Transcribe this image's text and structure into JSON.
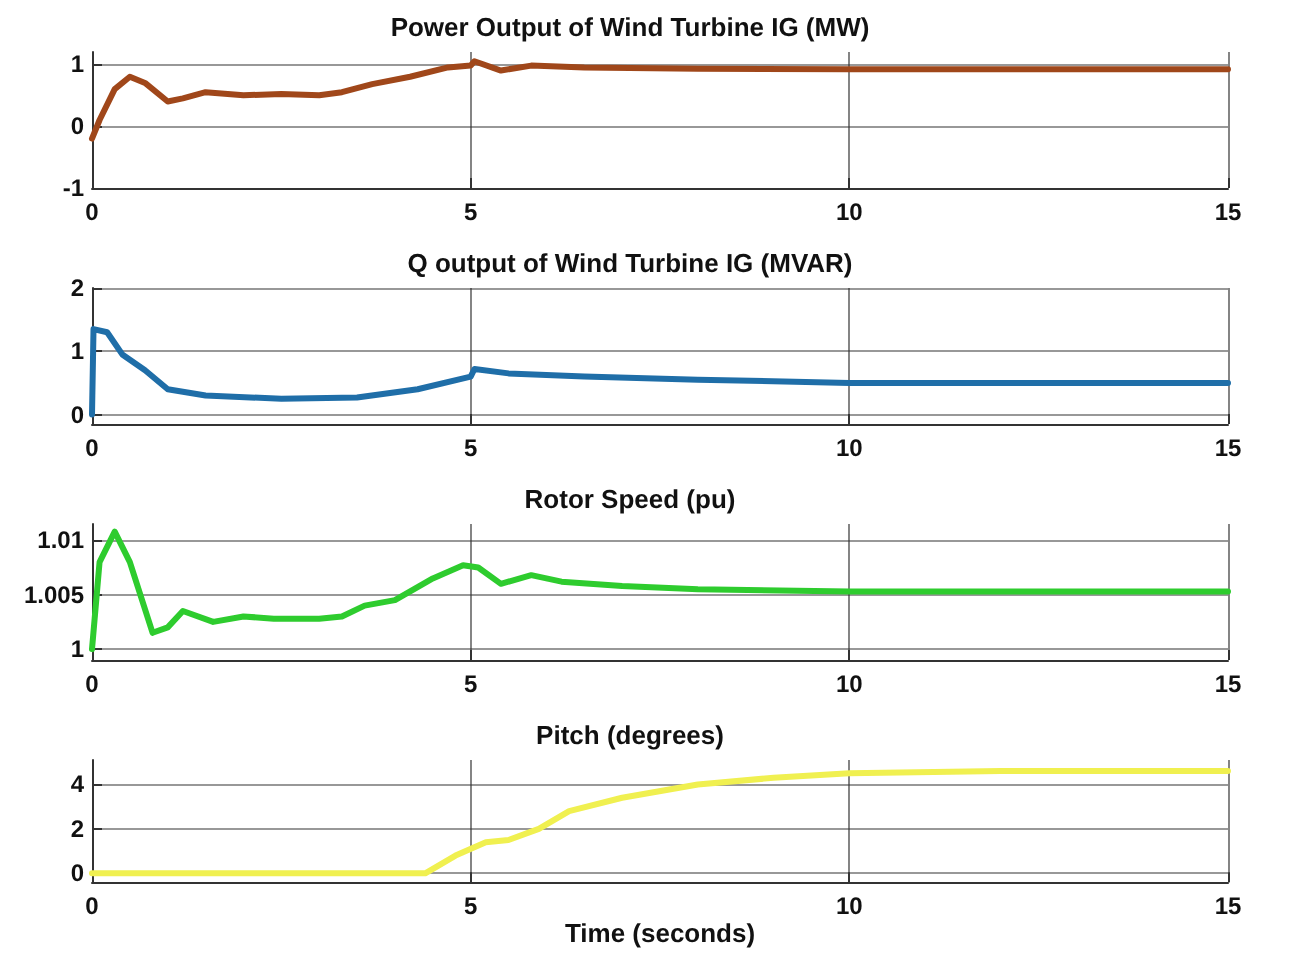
{
  "chart_data": [
    {
      "type": "line",
      "title": "Power Output of Wind Turbine IG (MW)",
      "xlim": [
        0,
        15
      ],
      "xticks": [
        0,
        5,
        10,
        15
      ],
      "ylim": [
        -1,
        1.2
      ],
      "yticks": [
        -1,
        0,
        1
      ],
      "grid": true,
      "x": [
        0,
        0.1,
        0.3,
        0.5,
        0.7,
        1.0,
        1.2,
        1.5,
        2,
        2.5,
        3,
        3.3,
        3.7,
        4.2,
        4.7,
        5.0,
        5.05,
        5.4,
        5.8,
        6.5,
        8,
        10,
        15
      ],
      "series": [
        {
          "color": "#a0471a",
          "values": [
            -0.2,
            0.1,
            0.6,
            0.8,
            0.7,
            0.4,
            0.45,
            0.55,
            0.5,
            0.52,
            0.5,
            0.55,
            0.68,
            0.8,
            0.95,
            0.98,
            1.05,
            0.9,
            0.98,
            0.95,
            0.93,
            0.92,
            0.92
          ]
        }
      ]
    },
    {
      "type": "line",
      "title": "Q output of Wind Turbine IG (MVAR)",
      "xlim": [
        0,
        15
      ],
      "xticks": [
        0,
        5,
        10,
        15
      ],
      "ylim": [
        -0.15,
        2
      ],
      "yticks": [
        0,
        1,
        2
      ],
      "grid": true,
      "x": [
        0,
        0.02,
        0.2,
        0.4,
        0.7,
        1.0,
        1.5,
        2.5,
        3.5,
        4.3,
        5.0,
        5.05,
        5.5,
        6.5,
        8,
        10,
        15
      ],
      "series": [
        {
          "color": "#1f6ea8",
          "values": [
            0,
            1.35,
            1.3,
            0.95,
            0.7,
            0.4,
            0.3,
            0.25,
            0.27,
            0.4,
            0.6,
            0.72,
            0.65,
            0.6,
            0.55,
            0.5,
            0.5
          ]
        }
      ]
    },
    {
      "type": "line",
      "title": "Rotor Speed (pu)",
      "xlim": [
        0,
        15
      ],
      "xticks": [
        0,
        5,
        10,
        15
      ],
      "ylim": [
        0.999,
        1.0115
      ],
      "yticks": [
        1,
        1.005,
        1.01
      ],
      "grid": true,
      "x": [
        0,
        0.1,
        0.3,
        0.5,
        0.8,
        1.0,
        1.2,
        1.6,
        2,
        2.4,
        3,
        3.3,
        3.6,
        4,
        4.5,
        4.9,
        5.1,
        5.4,
        5.8,
        6.2,
        7,
        8,
        10,
        15
      ],
      "series": [
        {
          "color": "#2ecc2e",
          "values": [
            1.0,
            1.008,
            1.0108,
            1.008,
            1.0015,
            1.002,
            1.0035,
            1.0025,
            1.003,
            1.0028,
            1.0028,
            1.003,
            1.004,
            1.0045,
            1.0065,
            1.0077,
            1.0075,
            1.006,
            1.0068,
            1.0062,
            1.0058,
            1.0055,
            1.0053,
            1.0053
          ]
        }
      ]
    },
    {
      "type": "line",
      "title": "Pitch (degrees)",
      "xlabel": "Time (seconds)",
      "xlim": [
        0,
        15
      ],
      "xticks": [
        0,
        5,
        10,
        15
      ],
      "ylim": [
        -0.4,
        5.1
      ],
      "yticks": [
        0,
        2,
        4
      ],
      "grid": true,
      "x": [
        0,
        4.4,
        4.8,
        5.2,
        5.5,
        5.9,
        6.3,
        7,
        8,
        9,
        10,
        12,
        15
      ],
      "series": [
        {
          "color": "#f0f050",
          "values": [
            0,
            0,
            0.8,
            1.4,
            1.5,
            2,
            2.8,
            3.4,
            4.0,
            4.3,
            4.5,
            4.6,
            4.6
          ]
        }
      ]
    }
  ]
}
